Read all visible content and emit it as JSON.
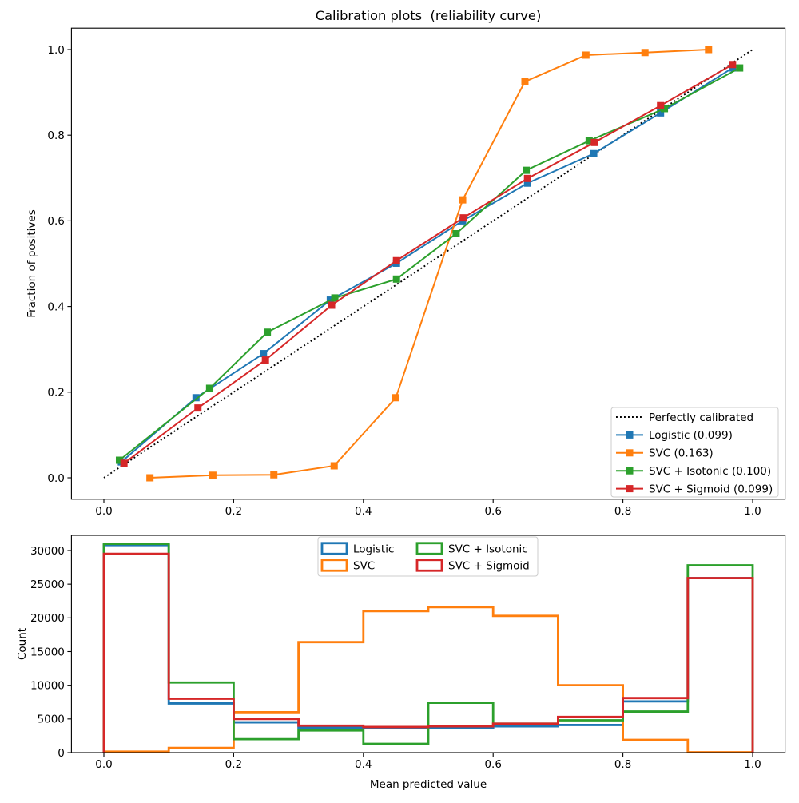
{
  "figure_background": "#ffffff",
  "axes_color": "#000000",
  "legend_border_color": "#cccccc",
  "chart_data": [
    {
      "type": "line",
      "title": "Calibration plots  (reliability curve)",
      "ylabel": "Fraction of positives",
      "xlim": [
        -0.05,
        1.05
      ],
      "ylim": [
        -0.05,
        1.05
      ],
      "grid": false,
      "xticks": {
        "values": [
          0,
          0.2,
          0.4,
          0.6,
          0.8,
          1.0
        ],
        "labels": [
          "0.0",
          "0.2",
          "0.4",
          "0.6",
          "0.8",
          "1.0"
        ]
      },
      "yticks": {
        "values": [
          0,
          0.2,
          0.4,
          0.6,
          0.8,
          1.0
        ],
        "labels": [
          "0.0",
          "0.2",
          "0.4",
          "0.6",
          "0.8",
          "1.0"
        ]
      },
      "legend": {
        "position": "lower right"
      },
      "reference": {
        "label": "Perfectly calibrated",
        "color": "#000000",
        "style": "dotted",
        "x": [
          0,
          1
        ],
        "y": [
          0,
          1
        ]
      },
      "series": [
        {
          "label": "Logistic (0.099)",
          "color": "#1f77b4",
          "marker": "square",
          "x": [
            0.027,
            0.142,
            0.246,
            0.349,
            0.451,
            0.553,
            0.653,
            0.755,
            0.858,
            0.969
          ],
          "y": [
            0.037,
            0.187,
            0.29,
            0.415,
            0.501,
            0.6,
            0.688,
            0.757,
            0.852,
            0.957
          ]
        },
        {
          "label": "SVC (0.163)",
          "color": "#ff7f0e",
          "marker": "square",
          "x": [
            0.071,
            0.168,
            0.262,
            0.355,
            0.45,
            0.553,
            0.649,
            0.743,
            0.834,
            0.932
          ],
          "y": [
            0.0,
            0.006,
            0.007,
            0.028,
            0.187,
            0.649,
            0.925,
            0.987,
            0.993,
            1.0
          ]
        },
        {
          "label": "SVC + Isotonic (0.100)",
          "color": "#2ca02c",
          "marker": "square",
          "x": [
            0.024,
            0.163,
            0.252,
            0.356,
            0.451,
            0.543,
            0.651,
            0.748,
            0.864,
            0.98
          ],
          "y": [
            0.041,
            0.209,
            0.34,
            0.42,
            0.464,
            0.57,
            0.718,
            0.787,
            0.862,
            0.957
          ]
        },
        {
          "label": "SVC + Sigmoid (0.099)",
          "color": "#d62728",
          "marker": "square",
          "x": [
            0.031,
            0.145,
            0.249,
            0.351,
            0.451,
            0.554,
            0.653,
            0.756,
            0.858,
            0.969
          ],
          "y": [
            0.034,
            0.163,
            0.275,
            0.403,
            0.507,
            0.607,
            0.699,
            0.783,
            0.869,
            0.965
          ]
        }
      ]
    },
    {
      "type": "step-histogram",
      "xlabel": "Mean predicted value",
      "ylabel": "Count",
      "xlim": [
        -0.05,
        1.05
      ],
      "ylim": [
        0,
        32250
      ],
      "grid": false,
      "bin_edges": [
        0,
        0.1,
        0.2,
        0.3,
        0.4,
        0.5,
        0.6,
        0.7,
        0.8,
        0.9,
        1.0
      ],
      "xticks": {
        "values": [
          0,
          0.2,
          0.4,
          0.6,
          0.8,
          1.0
        ],
        "labels": [
          "0.0",
          "0.2",
          "0.4",
          "0.6",
          "0.8",
          "1.0"
        ]
      },
      "yticks": {
        "values": [
          0,
          5000,
          10000,
          15000,
          20000,
          25000,
          30000
        ],
        "labels": [
          "0",
          "5000",
          "10000",
          "15000",
          "20000",
          "25000",
          "30000"
        ]
      },
      "legend": {
        "position": "upper center",
        "ncol": 2
      },
      "series": [
        {
          "label": "Logistic",
          "color": "#1f77b4",
          "counts": [
            30800,
            7300,
            4500,
            3700,
            3600,
            3700,
            3900,
            4100,
            7600,
            25900
          ]
        },
        {
          "label": "SVC",
          "color": "#ff7f0e",
          "counts": [
            150,
            700,
            6000,
            16400,
            21000,
            21600,
            20300,
            10000,
            1900,
            50
          ]
        },
        {
          "label": "SVC + Isotonic",
          "color": "#2ca02c",
          "counts": [
            31000,
            10400,
            2000,
            3300,
            1300,
            7400,
            4300,
            4800,
            6100,
            27800
          ]
        },
        {
          "label": "SVC + Sigmoid",
          "color": "#d62728",
          "counts": [
            29500,
            8000,
            5000,
            4000,
            3800,
            3900,
            4300,
            5300,
            8100,
            25900
          ]
        }
      ]
    }
  ]
}
